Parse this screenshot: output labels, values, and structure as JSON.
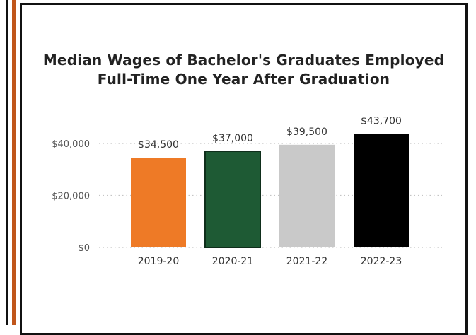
{
  "chart_data": {
    "type": "bar",
    "title_lines": [
      "Median Wages of Bachelor's Graduates Employed",
      "Full-Time One Year After Graduation"
    ],
    "categories": [
      "2019-20",
      "2020-21",
      "2021-22",
      "2022-23"
    ],
    "values": [
      34500,
      37000,
      39500,
      43700
    ],
    "data_labels": [
      "$34,500",
      "$37,000",
      "$39,500",
      "$43,700"
    ],
    "bar_colors": [
      "#ee7a26",
      "#1e5a34",
      "#c9c9c9",
      "#000000"
    ],
    "bar_outline": "#2f4f3a",
    "y_ticks": [
      {
        "value": 0,
        "label": "$0"
      },
      {
        "value": 20000,
        "label": "$20,000"
      },
      {
        "value": 40000,
        "label": "$40,000"
      }
    ],
    "grid": true,
    "legend": "none"
  }
}
